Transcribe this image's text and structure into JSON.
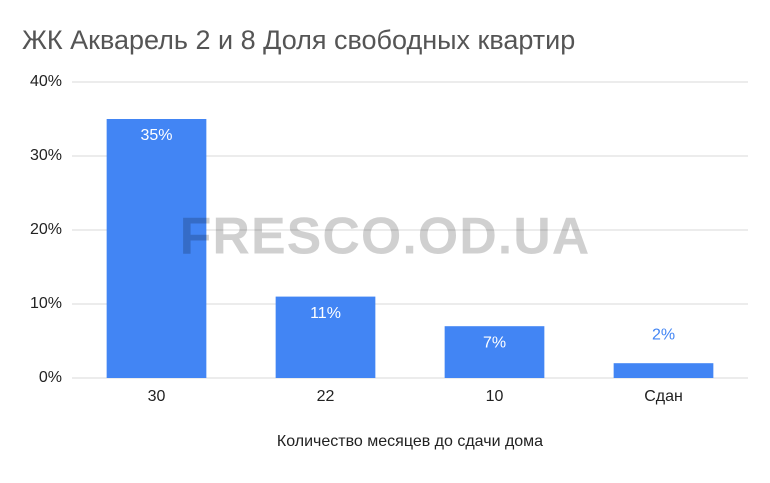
{
  "chart_data": {
    "type": "bar",
    "title": "ЖК Акварель 2 и 8 Доля свободных квартир",
    "x_label": "Количество месяцев до сдачи дома",
    "watermark": "FRESCO.OD.UA",
    "categories": [
      "30",
      "22",
      "10",
      "Сдан"
    ],
    "values": [
      35,
      11,
      7,
      2
    ],
    "value_labels": [
      "35%",
      "11%",
      "7%",
      "2%"
    ],
    "color": "#4285f4",
    "ylim": [
      0,
      40
    ],
    "yticks": [
      {
        "value": 0,
        "label": "0%"
      },
      {
        "value": 10,
        "label": "10%"
      },
      {
        "value": 20,
        "label": "20%"
      },
      {
        "value": 30,
        "label": "30%"
      },
      {
        "value": 40,
        "label": "40%"
      }
    ],
    "grid": true
  }
}
